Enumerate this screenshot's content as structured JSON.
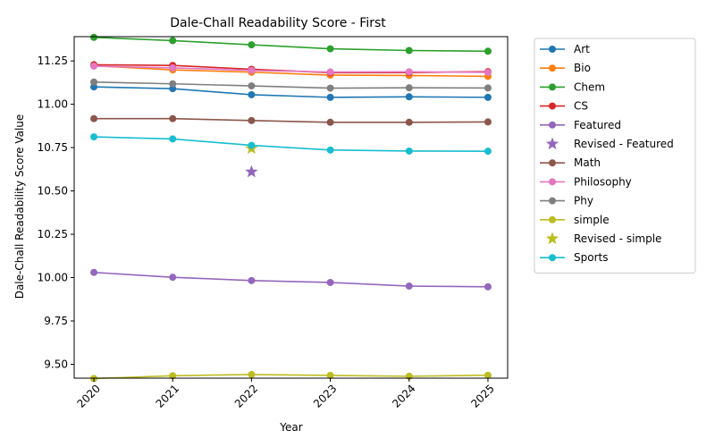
{
  "chart_data": {
    "type": "line",
    "title": "Dale-Chall Readability Score - First",
    "xlabel": "Year",
    "ylabel": "Dale-Chall Readability Score Value",
    "x": [
      2020,
      2021,
      2022,
      2023,
      2024,
      2025
    ],
    "xticks": [
      "2020",
      "2021",
      "2022",
      "2023",
      "2024",
      "2025"
    ],
    "ylim": [
      9.42,
      11.39
    ],
    "yticks": [
      "9.50",
      "9.75",
      "10.00",
      "10.25",
      "10.50",
      "10.75",
      "11.00",
      "11.25"
    ],
    "ytick_values": [
      9.5,
      9.75,
      10.0,
      10.25,
      10.5,
      10.75,
      11.0,
      11.25
    ],
    "grid": false,
    "legend_position": "outside-right",
    "series": [
      {
        "name": "Art",
        "color": "#1f77b4",
        "marker": "circle",
        "values": [
          11.1,
          11.09,
          11.055,
          11.04,
          11.043,
          11.04
        ]
      },
      {
        "name": "Bio",
        "color": "#ff7f0e",
        "marker": "circle",
        "values": [
          11.222,
          11.198,
          11.185,
          11.168,
          11.166,
          11.161
        ]
      },
      {
        "name": "Chem",
        "color": "#2ca02c",
        "marker": "circle",
        "values": [
          11.386,
          11.367,
          11.343,
          11.32,
          11.31,
          11.306
        ]
      },
      {
        "name": "CS",
        "color": "#d62728",
        "marker": "circle",
        "values": [
          11.228,
          11.224,
          11.202,
          11.182,
          11.183,
          11.188
        ]
      },
      {
        "name": "Featured",
        "color": "#9467bd",
        "marker": "circle",
        "values": [
          10.03,
          10.002,
          9.983,
          9.972,
          9.951,
          9.947
        ]
      },
      {
        "name": "Revised - Featured",
        "color": "#9467bd",
        "marker": "star",
        "points": [
          {
            "x": 2022,
            "y": 10.61
          }
        ]
      },
      {
        "name": "Math",
        "color": "#8c564b",
        "marker": "circle",
        "values": [
          10.917,
          10.917,
          10.906,
          10.896,
          10.896,
          10.898
        ]
      },
      {
        "name": "Philosophy",
        "color": "#e377c2",
        "marker": "circle",
        "values": [
          11.22,
          11.21,
          11.195,
          11.186,
          11.187,
          11.184
        ]
      },
      {
        "name": "Phy",
        "color": "#7f7f7f",
        "marker": "circle",
        "values": [
          11.128,
          11.118,
          11.106,
          11.093,
          11.095,
          11.094
        ]
      },
      {
        "name": "simple",
        "color": "#bcbd22",
        "marker": "circle",
        "values": [
          9.418,
          9.434,
          9.441,
          9.436,
          9.431,
          9.437
        ]
      },
      {
        "name": "Revised - simple",
        "color": "#bcbd22",
        "marker": "star",
        "points": [
          {
            "x": 2022,
            "y": 10.745
          }
        ]
      },
      {
        "name": "Sports",
        "color": "#17becf",
        "marker": "circle",
        "values": [
          10.812,
          10.8,
          10.763,
          10.736,
          10.73,
          10.729
        ]
      }
    ]
  }
}
